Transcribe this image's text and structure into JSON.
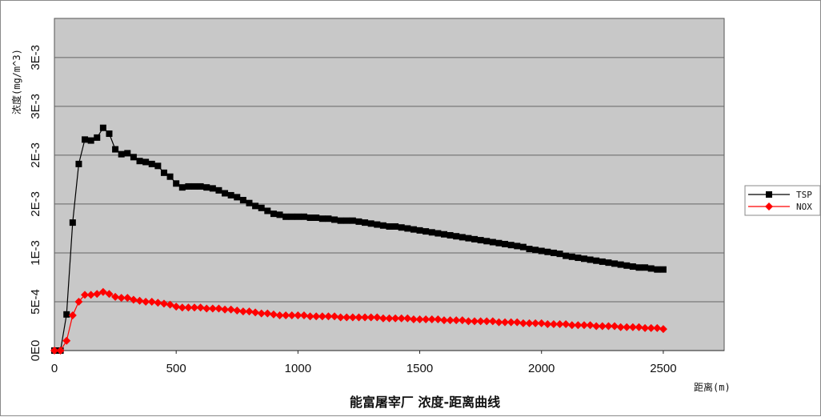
{
  "chart_data": {
    "type": "line",
    "title": "能富屠宰厂 浓度-距离曲线",
    "xlabel": "距离(m)",
    "ylabel": "浓度(mg/m^3)",
    "xlim": [
      0,
      2750
    ],
    "ylim": [
      0,
      0.0034
    ],
    "x_ticks": [
      0,
      500,
      1000,
      1500,
      2000,
      2500
    ],
    "x_tick_labels": [
      "0",
      "500",
      "1000",
      "1500",
      "2000",
      "2500"
    ],
    "y_ticks": [
      0,
      0.0005,
      0.001,
      0.0015,
      0.002,
      0.0025,
      0.003
    ],
    "y_tick_labels": [
      "0E0",
      "5E-4",
      "1E-3",
      "2E-3",
      "2E-3",
      "3E-3",
      "3E-3"
    ],
    "grid": "horizontal",
    "legend_position": "right",
    "plot_background": "#c8c8c8",
    "series": [
      {
        "name": "TSP",
        "color": "#000000",
        "marker": "square",
        "x": [
          0,
          25,
          50,
          75,
          100,
          125,
          150,
          175,
          200,
          225,
          250,
          275,
          300,
          325,
          350,
          375,
          400,
          425,
          450,
          475,
          500,
          525,
          550,
          575,
          600,
          625,
          650,
          675,
          700,
          725,
          750,
          775,
          800,
          825,
          850,
          875,
          900,
          925,
          950,
          975,
          1000,
          1025,
          1050,
          1075,
          1100,
          1125,
          1150,
          1175,
          1200,
          1225,
          1250,
          1275,
          1300,
          1325,
          1350,
          1375,
          1400,
          1425,
          1450,
          1475,
          1500,
          1525,
          1550,
          1575,
          1600,
          1625,
          1650,
          1675,
          1700,
          1725,
          1750,
          1775,
          1800,
          1825,
          1850,
          1875,
          1900,
          1925,
          1950,
          1975,
          2000,
          2025,
          2050,
          2075,
          2100,
          2125,
          2150,
          2175,
          2200,
          2225,
          2250,
          2275,
          2300,
          2325,
          2350,
          2375,
          2400,
          2425,
          2450,
          2475,
          2500
        ],
        "values": [
          0,
          0,
          0.00037,
          0.00131,
          0.00191,
          0.00216,
          0.00215,
          0.00218,
          0.00228,
          0.00222,
          0.00206,
          0.00201,
          0.00202,
          0.00198,
          0.00194,
          0.00193,
          0.00191,
          0.00189,
          0.00182,
          0.00178,
          0.00171,
          0.00167,
          0.00168,
          0.00168,
          0.00168,
          0.00167,
          0.00166,
          0.00164,
          0.00161,
          0.00159,
          0.00157,
          0.00154,
          0.00151,
          0.00148,
          0.00146,
          0.00143,
          0.0014,
          0.00139,
          0.00137,
          0.00137,
          0.00137,
          0.00137,
          0.00136,
          0.00136,
          0.00135,
          0.00135,
          0.00134,
          0.00133,
          0.00133,
          0.00133,
          0.00132,
          0.00131,
          0.0013,
          0.00129,
          0.00128,
          0.00127,
          0.00127,
          0.00126,
          0.00125,
          0.00124,
          0.00123,
          0.00122,
          0.00121,
          0.0012,
          0.00119,
          0.00118,
          0.00117,
          0.00116,
          0.00115,
          0.00114,
          0.00113,
          0.00112,
          0.00111,
          0.0011,
          0.00109,
          0.00108,
          0.00107,
          0.00106,
          0.00104,
          0.00103,
          0.00102,
          0.00101,
          0.001,
          0.00099,
          0.00097,
          0.00096,
          0.00095,
          0.00094,
          0.00093,
          0.00092,
          0.00091,
          0.0009,
          0.00089,
          0.00088,
          0.00087,
          0.00086,
          0.00085,
          0.00085,
          0.00084,
          0.00083,
          0.00083
        ]
      },
      {
        "name": "NOX",
        "color": "#ff0000",
        "marker": "diamond",
        "x": [
          0,
          25,
          50,
          75,
          100,
          125,
          150,
          175,
          200,
          225,
          250,
          275,
          300,
          325,
          350,
          375,
          400,
          425,
          450,
          475,
          500,
          525,
          550,
          575,
          600,
          625,
          650,
          675,
          700,
          725,
          750,
          775,
          800,
          825,
          850,
          875,
          900,
          925,
          950,
          975,
          1000,
          1025,
          1050,
          1075,
          1100,
          1125,
          1150,
          1175,
          1200,
          1225,
          1250,
          1275,
          1300,
          1325,
          1350,
          1375,
          1400,
          1425,
          1450,
          1475,
          1500,
          1525,
          1550,
          1575,
          1600,
          1625,
          1650,
          1675,
          1700,
          1725,
          1750,
          1775,
          1800,
          1825,
          1850,
          1875,
          1900,
          1925,
          1950,
          1975,
          2000,
          2025,
          2050,
          2075,
          2100,
          2125,
          2150,
          2175,
          2200,
          2225,
          2250,
          2275,
          2300,
          2325,
          2350,
          2375,
          2400,
          2425,
          2450,
          2475,
          2500
        ],
        "values": [
          0,
          0,
          0.0001,
          0.00036,
          0.0005,
          0.00057,
          0.00057,
          0.00058,
          0.0006,
          0.00058,
          0.00055,
          0.00054,
          0.00054,
          0.00052,
          0.00051,
          0.0005,
          0.0005,
          0.00049,
          0.00048,
          0.00047,
          0.00045,
          0.00044,
          0.00044,
          0.00044,
          0.00044,
          0.00043,
          0.00043,
          0.00043,
          0.00042,
          0.00042,
          0.00041,
          0.0004,
          0.0004,
          0.00039,
          0.00038,
          0.00038,
          0.00037,
          0.00036,
          0.00036,
          0.00036,
          0.00036,
          0.00036,
          0.00035,
          0.00035,
          0.00035,
          0.00035,
          0.00035,
          0.00034,
          0.00034,
          0.00034,
          0.00034,
          0.00034,
          0.00034,
          0.00034,
          0.00033,
          0.00033,
          0.00033,
          0.00033,
          0.00033,
          0.00032,
          0.00032,
          0.00032,
          0.00032,
          0.00032,
          0.00031,
          0.00031,
          0.00031,
          0.00031,
          0.0003,
          0.0003,
          0.0003,
          0.0003,
          0.0003,
          0.00029,
          0.00029,
          0.00029,
          0.00029,
          0.00028,
          0.00028,
          0.00028,
          0.00028,
          0.00027,
          0.00027,
          0.00027,
          0.00027,
          0.00026,
          0.00026,
          0.00026,
          0.00026,
          0.00025,
          0.00025,
          0.00025,
          0.00025,
          0.00024,
          0.00024,
          0.00024,
          0.00024,
          0.00023,
          0.00023,
          0.00023,
          0.00022
        ]
      }
    ]
  }
}
